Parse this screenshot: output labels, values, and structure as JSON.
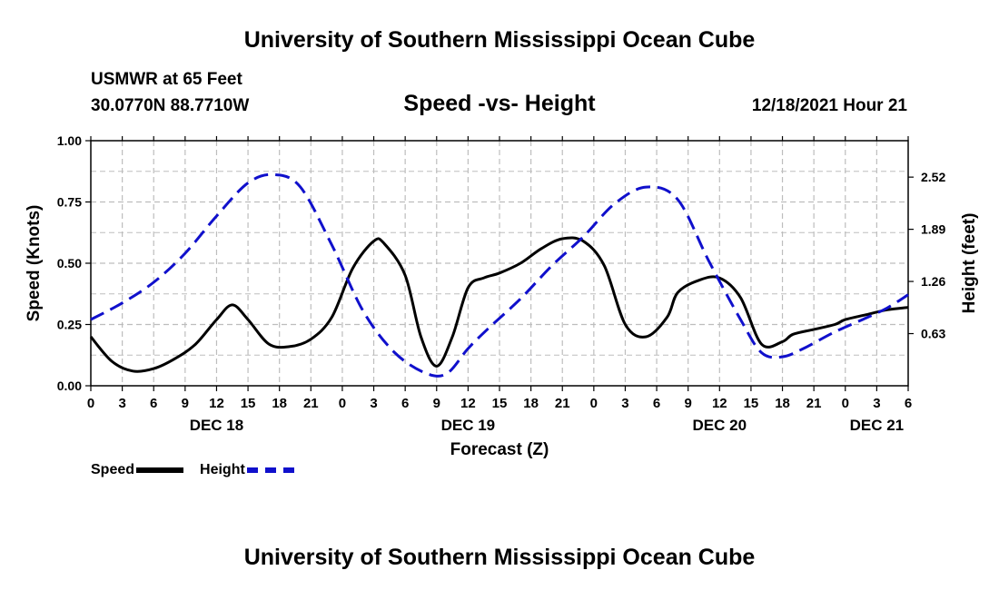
{
  "header": {
    "title": "University of Southern Mississippi Ocean Cube",
    "station": "USMWR at 65 Feet",
    "coordinates": "30.0770N  88.7710W",
    "subtitle": "Speed -vs- Height",
    "datetime": "12/18/2021 Hour 21"
  },
  "footer": {
    "title": "University of Southern Mississippi Ocean Cube"
  },
  "legend": {
    "speed_label": "Speed",
    "height_label": "Height"
  },
  "colors": {
    "speed": "#000000",
    "height": "#1010cc",
    "grid": "#bdbdbd"
  },
  "chart_data": {
    "type": "line",
    "title": "Speed -vs- Height",
    "xlabel": "Forecast (Z)",
    "ylabel": "Speed (Knots)",
    "y2label": "Height (feet)",
    "xlim": [
      0,
      78
    ],
    "ylim": [
      0,
      1
    ],
    "y2lim": [
      0,
      2.96
    ],
    "x_ticks": [
      0,
      3,
      6,
      9,
      12,
      15,
      18,
      21,
      24,
      27,
      30,
      33,
      36,
      39,
      42,
      45,
      48,
      51,
      54,
      57,
      60,
      63,
      66,
      69,
      72,
      75,
      78
    ],
    "x_tick_labels": [
      "0",
      "3",
      "6",
      "9",
      "12",
      "15",
      "18",
      "21",
      "0",
      "3",
      "6",
      "9",
      "12",
      "15",
      "18",
      "21",
      "0",
      "3",
      "6",
      "9",
      "12",
      "15",
      "18",
      "21",
      "0",
      "3",
      "6"
    ],
    "day_labels": [
      {
        "x": 12,
        "label": "DEC 18"
      },
      {
        "x": 36,
        "label": "DEC 19"
      },
      {
        "x": 60,
        "label": "DEC 20"
      },
      {
        "x": 75,
        "label": "DEC 21"
      }
    ],
    "y_ticks": [
      0,
      0.25,
      0.5,
      0.75,
      1.0
    ],
    "y_tick_labels": [
      "0.00",
      "0.25",
      "0.50",
      "0.75",
      "1.00"
    ],
    "y2_ticks": [
      0.63,
      1.26,
      1.89,
      2.52
    ],
    "y2_tick_labels": [
      "0.63",
      "1.26",
      "1.89",
      "2.52"
    ],
    "series": [
      {
        "name": "Speed",
        "axis": "left",
        "x": [
          0,
          2,
          4,
          6,
          8,
          10,
          12,
          13.5,
          15,
          17,
          19,
          21,
          23,
          25,
          27,
          28,
          30,
          31.5,
          33,
          34.5,
          36,
          37.5,
          39,
          41,
          43,
          45,
          47,
          49,
          51,
          53,
          55,
          56,
          58,
          60,
          62,
          64,
          66,
          67,
          69,
          71,
          72,
          74,
          76,
          78
        ],
        "values": [
          0.2,
          0.1,
          0.06,
          0.07,
          0.11,
          0.17,
          0.27,
          0.33,
          0.27,
          0.17,
          0.16,
          0.19,
          0.28,
          0.48,
          0.59,
          0.58,
          0.45,
          0.2,
          0.08,
          0.2,
          0.4,
          0.44,
          0.46,
          0.5,
          0.56,
          0.6,
          0.59,
          0.49,
          0.25,
          0.2,
          0.28,
          0.38,
          0.43,
          0.44,
          0.36,
          0.17,
          0.18,
          0.21,
          0.23,
          0.25,
          0.27,
          0.29,
          0.31,
          0.32
        ]
      },
      {
        "name": "Height",
        "axis": "right",
        "x": [
          0,
          3,
          6,
          9,
          12,
          15,
          17.5,
          20,
          23,
          26,
          29,
          32,
          34,
          36,
          38,
          41,
          44,
          47,
          50,
          53,
          56,
          59,
          62,
          64,
          66,
          68,
          71,
          74,
          76,
          78
        ],
        "values": [
          0.8,
          1.0,
          1.25,
          1.6,
          2.05,
          2.45,
          2.55,
          2.4,
          1.7,
          0.9,
          0.4,
          0.15,
          0.15,
          0.45,
          0.7,
          1.05,
          1.45,
          1.8,
          2.2,
          2.4,
          2.25,
          1.5,
          0.8,
          0.4,
          0.35,
          0.45,
          0.65,
          0.82,
          0.94,
          1.1
        ]
      }
    ]
  }
}
